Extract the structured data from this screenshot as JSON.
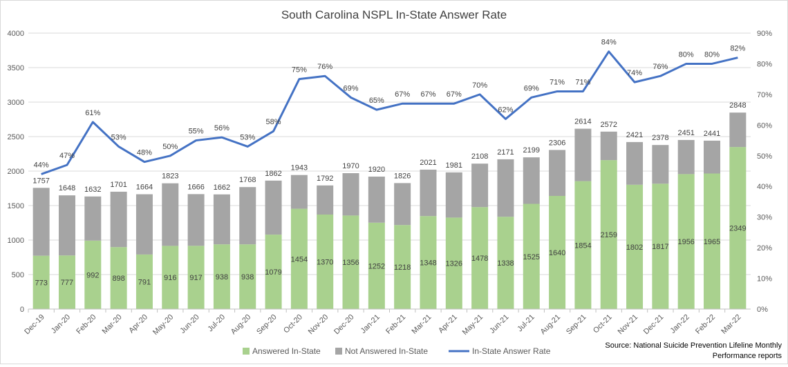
{
  "chart_data": {
    "type": "bar+line",
    "title": "South Carolina NSPL In-State Answer Rate",
    "categories": [
      "Dec-19",
      "Jan-20",
      "Feb-20",
      "Mar-20",
      "Apr-20",
      "May-20",
      "Jun-20",
      "Jul-20",
      "Aug-20",
      "Sep-20",
      "Oct-20",
      "Nov-20",
      "Dec-20",
      "Jan-21",
      "Feb-21",
      "Mar-21",
      "Apr-21",
      "May-21",
      "Jun-21",
      "Jul-21",
      "Aug-21",
      "Sep-21",
      "Oct-21",
      "Nov-21",
      "Dec-21",
      "Jan-22",
      "Feb-22",
      "Mar-22"
    ],
    "series": [
      {
        "name": "Answered In-State",
        "type": "stacked-bar",
        "color": "#a9d18e",
        "values": [
          773,
          777,
          992,
          898,
          791,
          916,
          917,
          938,
          938,
          1079,
          1454,
          1370,
          1356,
          1252,
          1218,
          1348,
          1326,
          1478,
          1338,
          1525,
          1640,
          1854,
          2159,
          1802,
          1817,
          1956,
          1965,
          2349
        ]
      },
      {
        "name": "Not Answered In-State",
        "type": "stacked-bar",
        "color": "#a5a5a5",
        "values": [
          984,
          871,
          640,
          803,
          873,
          907,
          749,
          724,
          830,
          783,
          489,
          422,
          614,
          668,
          608,
          673,
          655,
          630,
          833,
          674,
          666,
          760,
          413,
          619,
          561,
          495,
          476,
          499
        ]
      },
      {
        "name": "In-State Answer Rate",
        "type": "line",
        "axis": "right",
        "color": "#4472c4",
        "values": [
          44,
          47,
          61,
          53,
          48,
          50,
          55,
          56,
          53,
          58,
          75,
          76,
          69,
          65,
          67,
          67,
          67,
          70,
          62,
          69,
          71,
          71,
          84,
          74,
          76,
          80,
          80,
          82
        ]
      }
    ],
    "totals": [
      1757,
      1648,
      1632,
      1701,
      1664,
      1823,
      1666,
      1662,
      1768,
      1862,
      1943,
      1792,
      1970,
      1920,
      1826,
      2021,
      1981,
      2108,
      2171,
      2199,
      2306,
      2614,
      2572,
      2421,
      2378,
      2451,
      2441,
      2848
    ],
    "ylim": [
      0,
      4000
    ],
    "yticks": [
      0,
      500,
      1000,
      1500,
      2000,
      2500,
      3000,
      3500,
      4000
    ],
    "y2lim": [
      0,
      90
    ],
    "y2ticks": [
      "0%",
      "10%",
      "20%",
      "30%",
      "40%",
      "50%",
      "60%",
      "70%",
      "80%",
      "90%"
    ],
    "grid": true,
    "legend": "bottom",
    "source": [
      "Source: National Suicide Prevention Lifeline Monthly",
      "Performance reports"
    ]
  }
}
